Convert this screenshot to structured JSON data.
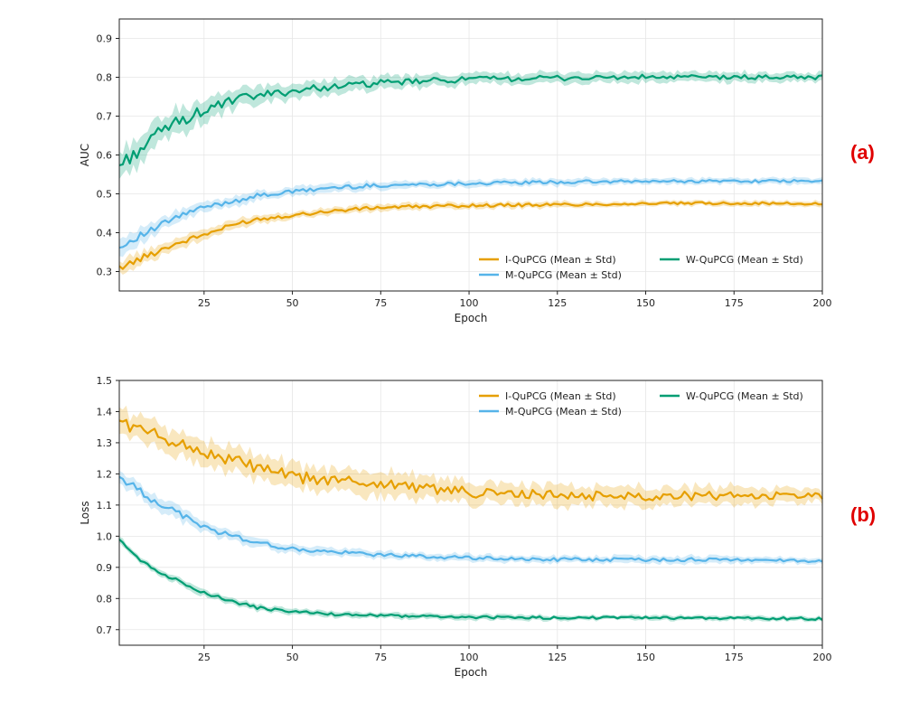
{
  "chart_data": [
    {
      "type": "line",
      "panel_label": "(a)",
      "title": "",
      "xlabel": "Epoch",
      "ylabel": "AUC",
      "xlim": [
        1,
        200
      ],
      "ylim": [
        0.25,
        0.95
      ],
      "xticks": [
        25,
        50,
        75,
        100,
        125,
        150,
        175,
        200
      ],
      "xtick_labels": [
        "25",
        "50",
        "75",
        "100",
        "125",
        "150",
        "175",
        "200"
      ],
      "yticks": [
        0.3,
        0.4,
        0.5,
        0.6,
        0.7,
        0.8,
        0.9
      ],
      "ytick_labels": [
        "0.3",
        "0.4",
        "0.5",
        "0.6",
        "0.7",
        "0.8",
        "0.9"
      ],
      "grid": true,
      "legend_location": "lower-right",
      "series": [
        {
          "name": "I-QuPCG (Mean ± Std)",
          "color": "#E69F00",
          "x": [
            1,
            5,
            10,
            15,
            20,
            25,
            30,
            35,
            40,
            50,
            60,
            75,
            100,
            125,
            150,
            175,
            200
          ],
          "values": [
            0.31,
            0.325,
            0.345,
            0.365,
            0.38,
            0.395,
            0.41,
            0.425,
            0.435,
            0.445,
            0.455,
            0.465,
            0.47,
            0.472,
            0.475,
            0.476,
            0.474
          ],
          "std": [
            0.015,
            0.015,
            0.015,
            0.012,
            0.012,
            0.012,
            0.01,
            0.01,
            0.01,
            0.008,
            0.008,
            0.008,
            0.007,
            0.007,
            0.006,
            0.006,
            0.006
          ]
        },
        {
          "name": "M-QuPCG (Mean ± Std)",
          "color": "#56B4E9",
          "x": [
            1,
            5,
            10,
            15,
            20,
            25,
            30,
            35,
            40,
            50,
            60,
            75,
            100,
            125,
            150,
            175,
            200
          ],
          "values": [
            0.36,
            0.385,
            0.405,
            0.43,
            0.45,
            0.465,
            0.475,
            0.485,
            0.495,
            0.505,
            0.515,
            0.522,
            0.527,
            0.53,
            0.532,
            0.533,
            0.532
          ],
          "std": [
            0.02,
            0.018,
            0.015,
            0.015,
            0.013,
            0.012,
            0.012,
            0.012,
            0.01,
            0.01,
            0.01,
            0.009,
            0.008,
            0.008,
            0.007,
            0.007,
            0.007
          ]
        },
        {
          "name": "W-QuPCG (Mean ± Std)",
          "color": "#009E73",
          "x": [
            1,
            5,
            10,
            15,
            20,
            25,
            30,
            35,
            40,
            50,
            60,
            75,
            100,
            125,
            150,
            175,
            200
          ],
          "values": [
            0.575,
            0.6,
            0.64,
            0.675,
            0.695,
            0.715,
            0.73,
            0.745,
            0.752,
            0.765,
            0.775,
            0.785,
            0.795,
            0.798,
            0.8,
            0.8,
            0.8
          ],
          "std": [
            0.03,
            0.03,
            0.03,
            0.028,
            0.027,
            0.025,
            0.022,
            0.02,
            0.02,
            0.018,
            0.016,
            0.015,
            0.013,
            0.012,
            0.012,
            0.011,
            0.01
          ]
        }
      ],
      "legend_order": [
        0,
        1,
        2
      ]
    },
    {
      "type": "line",
      "panel_label": "(b)",
      "title": "",
      "xlabel": "Epoch",
      "ylabel": "Loss",
      "xlim": [
        1,
        200
      ],
      "ylim": [
        0.65,
        1.5
      ],
      "xticks": [
        25,
        50,
        75,
        100,
        125,
        150,
        175,
        200
      ],
      "xtick_labels": [
        "25",
        "50",
        "75",
        "100",
        "125",
        "150",
        "175",
        "200"
      ],
      "yticks": [
        0.7,
        0.8,
        0.9,
        1.0,
        1.1,
        1.2,
        1.3,
        1.4,
        1.5
      ],
      "ytick_labels": [
        "0.7",
        "0.8",
        "0.9",
        "1.0",
        "1.1",
        "1.2",
        "1.3",
        "1.4",
        "1.5"
      ],
      "grid": true,
      "legend_location": "upper-right",
      "series": [
        {
          "name": "I-QuPCG (Mean ± Std)",
          "color": "#E69F00",
          "x": [
            1,
            5,
            10,
            15,
            20,
            25,
            30,
            35,
            40,
            50,
            60,
            75,
            100,
            125,
            150,
            175,
            200
          ],
          "values": [
            1.37,
            1.35,
            1.33,
            1.31,
            1.29,
            1.27,
            1.25,
            1.24,
            1.22,
            1.19,
            1.18,
            1.17,
            1.14,
            1.13,
            1.13,
            1.13,
            1.13
          ],
          "std": [
            0.035,
            0.035,
            0.035,
            0.035,
            0.035,
            0.035,
            0.035,
            0.035,
            0.035,
            0.035,
            0.035,
            0.035,
            0.03,
            0.03,
            0.028,
            0.025,
            0.02
          ]
        },
        {
          "name": "M-QuPCG (Mean ± Std)",
          "color": "#56B4E9",
          "x": [
            1,
            5,
            10,
            15,
            20,
            25,
            30,
            35,
            40,
            50,
            60,
            75,
            100,
            125,
            150,
            175,
            200
          ],
          "values": [
            1.19,
            1.16,
            1.12,
            1.09,
            1.06,
            1.03,
            1.01,
            0.995,
            0.98,
            0.958,
            0.95,
            0.94,
            0.93,
            0.925,
            0.925,
            0.925,
            0.92
          ],
          "std": [
            0.02,
            0.02,
            0.02,
            0.018,
            0.018,
            0.015,
            0.015,
            0.015,
            0.013,
            0.012,
            0.012,
            0.01,
            0.01,
            0.01,
            0.01,
            0.01,
            0.008
          ]
        },
        {
          "name": "W-QuPCG (Mean ± Std)",
          "color": "#009E73",
          "x": [
            1,
            5,
            10,
            15,
            20,
            25,
            30,
            35,
            40,
            50,
            60,
            75,
            100,
            125,
            150,
            175,
            200
          ],
          "values": [
            0.995,
            0.94,
            0.9,
            0.87,
            0.845,
            0.82,
            0.8,
            0.785,
            0.77,
            0.758,
            0.75,
            0.745,
            0.74,
            0.738,
            0.738,
            0.737,
            0.735
          ],
          "std": [
            0.01,
            0.01,
            0.01,
            0.01,
            0.01,
            0.01,
            0.009,
            0.009,
            0.009,
            0.008,
            0.008,
            0.008,
            0.008,
            0.007,
            0.007,
            0.007,
            0.007
          ]
        }
      ],
      "legend_order": [
        0,
        1,
        2
      ]
    }
  ]
}
